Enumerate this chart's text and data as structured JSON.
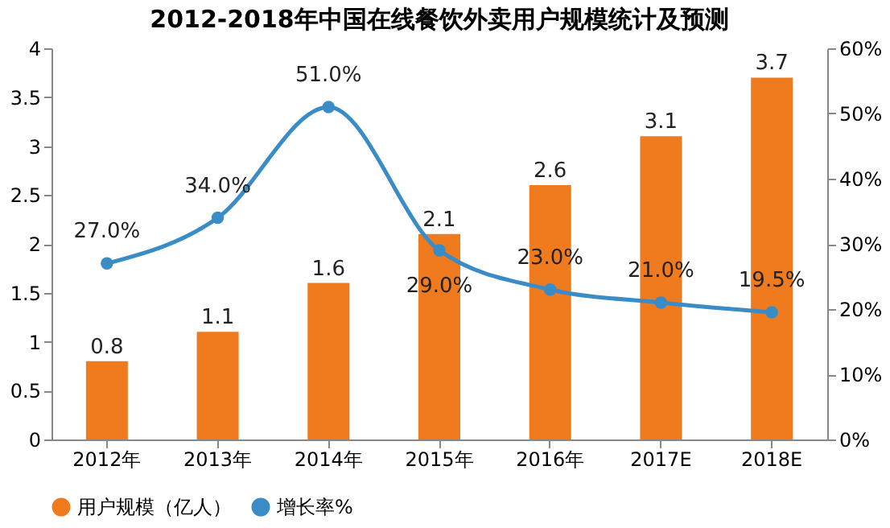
{
  "chart_data": {
    "type": "bar",
    "title": "2012-2018年中国在线餐饮外卖用户规模统计及预测",
    "categories": [
      "2012年",
      "2013年",
      "2014年",
      "2015年",
      "2016年",
      "2017E",
      "2018E"
    ],
    "series": [
      {
        "name": "用户规模（亿人）",
        "color": "#f07a1e",
        "values": [
          0.8,
          1.1,
          1.6,
          2.1,
          2.6,
          3.1,
          3.7
        ],
        "value_labels": [
          "0.8",
          "1.1",
          "1.6",
          "2.1",
          "2.6",
          "3.1",
          "3.7"
        ]
      },
      {
        "name": "增长率%",
        "type": "line",
        "axis": "y2",
        "color": "#3a8cc6",
        "values": [
          27.0,
          34.0,
          51.0,
          29.0,
          23.0,
          21.0,
          19.5
        ],
        "value_labels": [
          "27.0%",
          "34.0%",
          "51.0%",
          "29.0%",
          "23.0%",
          "21.0%",
          "19.5%"
        ]
      }
    ],
    "ylim": [
      0,
      4
    ],
    "yticks": [
      0,
      0.5,
      1,
      1.5,
      2,
      2.5,
      3,
      3.5,
      4
    ],
    "y2lim": [
      0,
      60
    ],
    "y2ticks": [
      {
        "value": 0,
        "label": "0%"
      },
      {
        "value": 10,
        "label": "10%"
      },
      {
        "value": 20,
        "label": "20%"
      },
      {
        "value": 30,
        "label": "30%"
      },
      {
        "value": 40,
        "label": "40%"
      },
      {
        "value": 50,
        "label": "50%"
      },
      {
        "value": 60,
        "label": "60%"
      }
    ],
    "legend": "bottom",
    "marker": "circle",
    "line_style": "solid"
  }
}
